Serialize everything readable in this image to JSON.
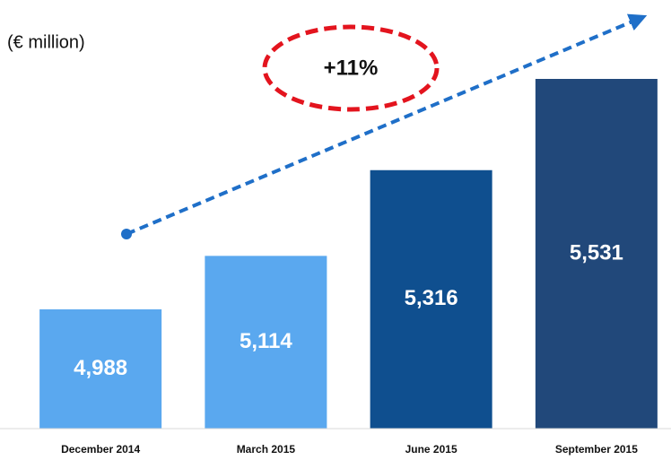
{
  "chart_data": {
    "type": "bar",
    "unit_label": "(€ million)",
    "annotation": "+11%",
    "categories": [
      "December 2014",
      "March 2015",
      "June 2015",
      "September 2015"
    ],
    "values": [
      4988,
      5114,
      5316,
      5531
    ],
    "value_labels": [
      "4,988",
      "5,114",
      "5,316",
      "5,531"
    ],
    "colors": [
      "#5aa8ef",
      "#5aa8ef",
      "#0f4f8f",
      "#21487a"
    ],
    "ylim": [
      4707,
      5531
    ]
  }
}
